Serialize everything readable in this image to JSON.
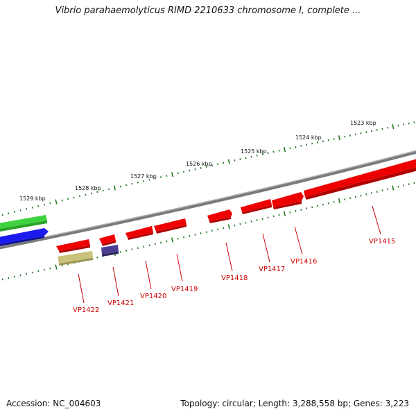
{
  "header": {
    "title": "Vibrio parahaemolyticus RIMD 2210633 chromosome I, complete ..."
  },
  "footer": {
    "accession": "Accession: NC_004603",
    "topology": "Topology: circular; Length: 3,288,558 bp; Genes: 3,223"
  },
  "scale_labels": [
    "1523 kbp",
    "1524 kbp",
    "1525 kbp",
    "1526 kbp",
    "1527 kbp",
    "1528 kbp",
    "1529 kbp"
  ],
  "genes": [
    {
      "label": "VP1415",
      "color": "#e60000"
    },
    {
      "label": "VP1416",
      "color": "#e60000"
    },
    {
      "label": "VP1417",
      "color": "#e60000"
    },
    {
      "label": "VP1418",
      "color": "#e60000"
    },
    {
      "label": "VP1419",
      "color": "#e60000"
    },
    {
      "label": "VP1420",
      "color": "#e60000"
    },
    {
      "label": "VP1421",
      "color": "#e60000"
    },
    {
      "label": "VP1422",
      "color": "#e60000"
    }
  ],
  "colors": {
    "backbone": "#808080",
    "tick": "#1e7a1e",
    "gene_red": "#e60000",
    "gene_label": "#cc0000",
    "track_green": "#33cc33",
    "track_blue": "#1414e6",
    "track_khaki": "#b8b36a",
    "track_purple": "#4a3d8f"
  }
}
